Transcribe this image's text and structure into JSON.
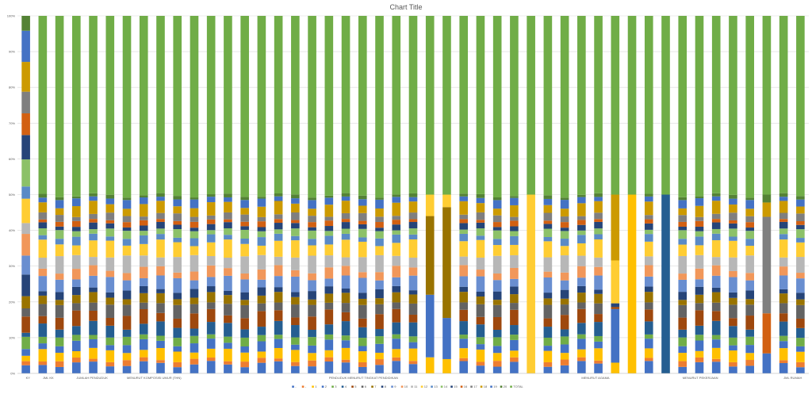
{
  "chart_data": {
    "type": "bar",
    "stacking": "percent",
    "title": "Chart Title",
    "xlabel": "",
    "ylabel": "",
    "ylim": [
      0,
      100
    ],
    "y_ticks": [
      "0%",
      "10%",
      "20%",
      "30%",
      "40%",
      "50%",
      "60%",
      "70%",
      "80%",
      "90%",
      "100%"
    ],
    "grid": true,
    "legend_position": "bottom",
    "group_labels": [
      {
        "index": 0,
        "label": "KY"
      },
      {
        "index": 1,
        "label": "JML KK"
      },
      {
        "index": 3,
        "label": "JUMLAH PENDUDUK"
      },
      {
        "index": 6,
        "label": "MENURUT KOMPOSISI UMUR (THN)"
      },
      {
        "index": 18,
        "label": "PENDUDUK MENURUT TINGKAT PENDIDIKAN"
      },
      {
        "index": 33,
        "label": "MENURUT AGAMA"
      },
      {
        "index": 39,
        "label": "MENURUT PEKERJAAN"
      },
      {
        "index": 45,
        "label": "JML RUMAH"
      }
    ],
    "legend": [
      "-",
      "-",
      "1",
      "2",
      "3",
      "4",
      "5",
      "6",
      "7",
      "8",
      "9",
      "10",
      "11",
      "12",
      "13",
      "14",
      "15",
      "16",
      "17",
      "18",
      "19",
      "20",
      "TOTAL"
    ],
    "series_colors": [
      "#4472c4",
      "#ed7d31",
      "#ffc000",
      "#4472c4",
      "#70ad47",
      "#255e91",
      "#9e480e",
      "#636363",
      "#997300",
      "#264478",
      "#698ed0",
      "#f1975a",
      "#b7b7b7",
      "#ffcd33",
      "#5a8ac6",
      "#8cc168",
      "#264478",
      "#d26012",
      "#7f7f7f",
      "#cc9a00",
      "#4472c4",
      "#548235",
      "#70ad47"
    ],
    "pattern": {
      "regular_shares": [
        2.6,
        1.2,
        2.6,
        2.2,
        1.8,
        3.0,
        3.2,
        2.8,
        2.2,
        1.8,
        3.2,
        2.4,
        3.6,
        3.8,
        1.8,
        1.8,
        1.4,
        1.2,
        1.6,
        2.8,
        1.8,
        0.8,
        50
      ],
      "first_category_shares": [
        1.2,
        0.6,
        0.8,
        1.0,
        1.8,
        0.6,
        2.4,
        1.2,
        1.8,
        3.2,
        2.8,
        3.2,
        1.6,
        3.6,
        1.8,
        4.0,
        3.6,
        3.2,
        3.2,
        4.4,
        4.6,
        2.2,
        0
      ]
    },
    "special_columns": [
      {
        "index": 24,
        "shares": [
          0,
          0,
          4.5,
          17.5,
          0,
          0,
          0,
          0,
          22,
          0,
          0,
          0,
          0,
          6,
          0,
          0,
          0,
          0,
          0,
          0,
          0,
          0,
          50
        ]
      },
      {
        "index": 25,
        "shares": [
          0,
          0,
          4,
          11.5,
          0,
          0,
          0,
          0,
          31,
          0,
          0,
          0,
          0,
          3.5,
          0,
          0,
          0,
          0,
          0,
          0,
          0,
          0,
          50
        ]
      },
      {
        "index": 30,
        "shares": [
          0,
          0,
          0,
          0,
          0,
          0,
          0,
          0,
          0,
          0,
          0,
          0,
          0,
          50,
          0,
          0,
          0,
          0,
          0,
          0,
          0,
          0,
          50
        ]
      },
      {
        "index": 35,
        "shares": [
          0,
          0,
          3,
          15,
          0,
          0,
          0.6,
          0,
          0,
          1,
          0,
          0,
          0,
          12,
          0,
          0,
          0,
          0,
          0,
          18.4,
          0,
          0,
          50
        ]
      },
      {
        "index": 36,
        "shares": [
          0,
          0,
          50,
          0,
          0,
          0,
          0,
          0,
          0,
          0,
          0,
          0,
          0,
          0,
          0,
          0,
          0,
          0,
          0,
          0,
          0,
          0,
          50
        ]
      },
      {
        "index": 38,
        "shares": [
          0,
          0,
          0,
          0,
          0,
          50,
          0,
          0,
          0,
          0,
          0,
          0,
          0,
          0,
          0,
          0,
          0,
          0,
          0,
          0,
          0,
          0,
          50
        ]
      },
      {
        "index": 44,
        "shares": [
          0,
          0,
          0,
          5.6,
          0,
          0,
          0,
          0,
          0,
          0,
          0,
          0,
          0,
          0,
          0,
          0,
          0,
          11.2,
          27,
          4,
          0,
          2.2,
          50
        ]
      }
    ],
    "category_count": 47
  }
}
